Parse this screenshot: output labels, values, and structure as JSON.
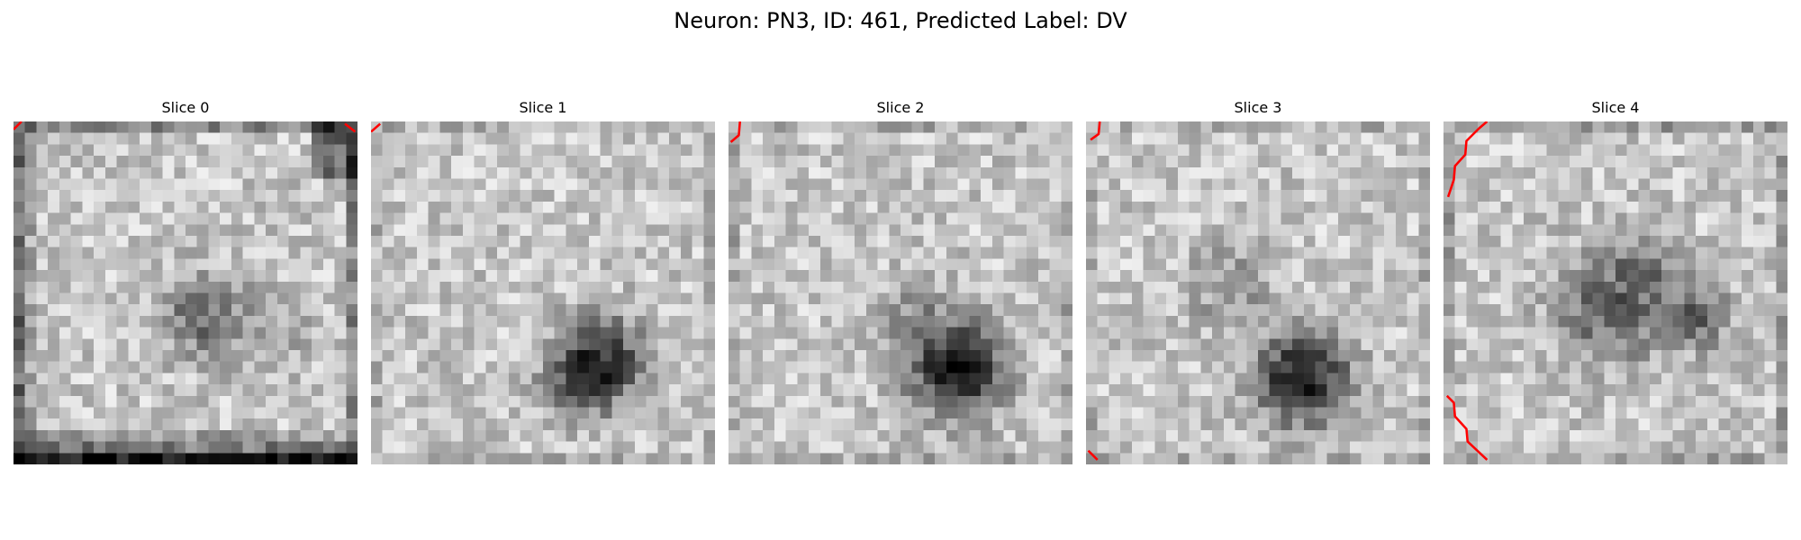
{
  "figure": {
    "title": "Neuron: PN3, ID: 461, Predicted Label: DV"
  },
  "slices": [
    {
      "title": "Slice 0"
    },
    {
      "title": "Slice 1"
    },
    {
      "title": "Slice 2"
    },
    {
      "title": "Slice 3"
    },
    {
      "title": "Slice 4"
    }
  ],
  "colormap": "gray",
  "contour_color": "#ff0000"
}
